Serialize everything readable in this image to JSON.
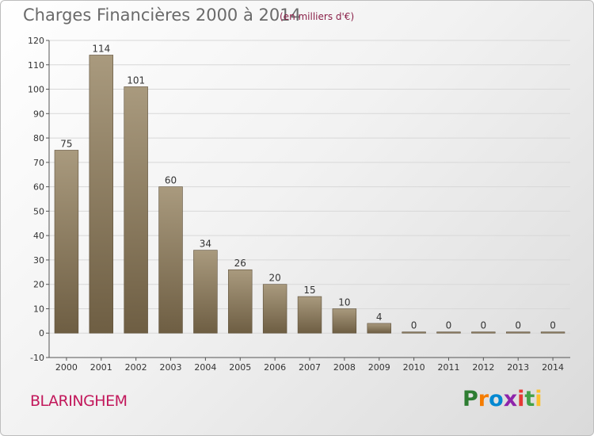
{
  "header": {
    "title": "Charges Financières 2000 à 2014",
    "subtitle": "(en milliers d'€)"
  },
  "footer": {
    "city": "BLARINGHEM",
    "logo": "Proxiti",
    "logo_colors": [
      "#2e7d32",
      "#f57c00",
      "#0288d1",
      "#8e24aa",
      "#e53935",
      "#43a047",
      "#fbc02d"
    ]
  },
  "colors": {
    "bar_light": "#a99a7e",
    "bar_dark": "#6e5e43",
    "grid": "#d8d8d8",
    "axis": "#555555"
  },
  "chart_data": {
    "type": "bar",
    "title": "Charges Financières 2000 à 2014",
    "subtitle": "(en milliers d'€)",
    "categories": [
      "2000",
      "2001",
      "2002",
      "2003",
      "2004",
      "2005",
      "2006",
      "2007",
      "2008",
      "2009",
      "2010",
      "2011",
      "2012",
      "2013",
      "2014"
    ],
    "values": [
      75,
      114,
      101,
      60,
      34,
      26,
      20,
      15,
      10,
      4,
      0,
      0,
      0,
      0,
      0
    ],
    "ylim": [
      -10,
      120
    ],
    "yticks": [
      -10,
      0,
      10,
      20,
      30,
      40,
      50,
      60,
      70,
      80,
      90,
      100,
      110,
      120
    ],
    "grid": true,
    "data_labels": true
  }
}
